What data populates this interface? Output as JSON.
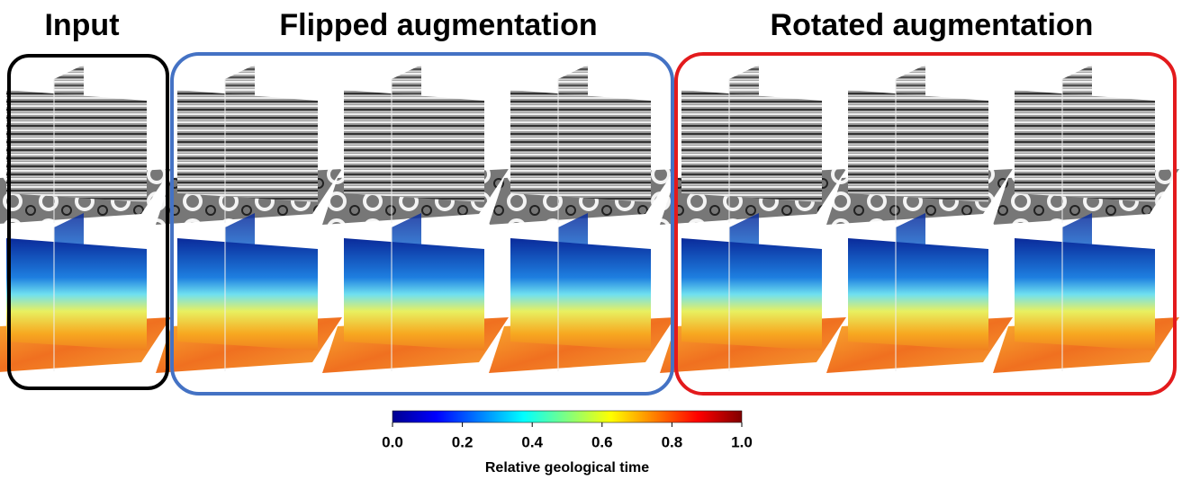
{
  "titles": [
    "Input",
    "Flipped augmentation",
    "Rotated augmentation"
  ],
  "colorbar": {
    "lim": [
      0,
      1
    ],
    "ticks": [
      {
        "value": 0,
        "label": "0.0"
      },
      {
        "value": 0.2,
        "label": "0.2"
      },
      {
        "value": 0.4,
        "label": "0.4"
      },
      {
        "value": 0.6,
        "label": "0.6"
      },
      {
        "value": 0.8,
        "label": "0.8"
      },
      {
        "value": 1,
        "label": "1.0"
      }
    ],
    "label": "Relative geological time"
  }
}
